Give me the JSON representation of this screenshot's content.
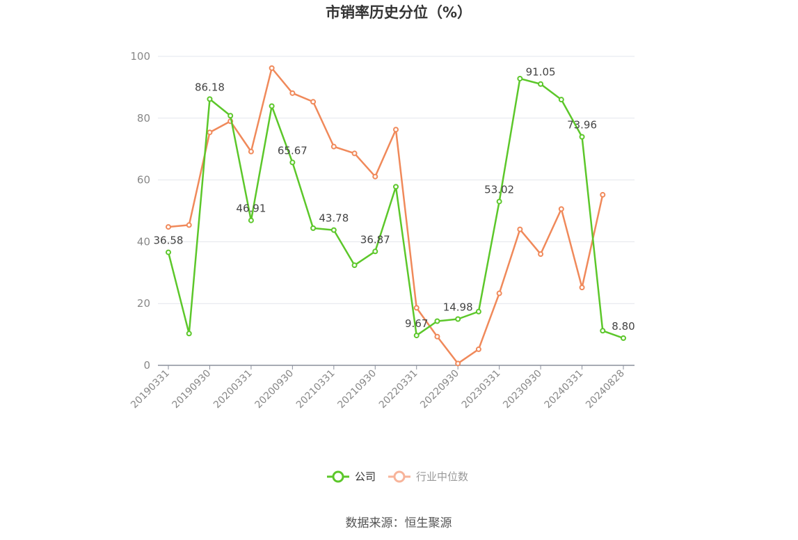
{
  "chart_data": {
    "type": "line",
    "title": "市销率历史分位（%）",
    "x": [
      "20190331",
      "20190630",
      "20190930",
      "20191231",
      "20200331",
      "20200630",
      "20200930",
      "20201231",
      "20210331",
      "20210630",
      "20210930",
      "20211231",
      "20220331",
      "20220630",
      "20220930",
      "20221231",
      "20230331",
      "20230630",
      "20230930",
      "20231231",
      "20240331",
      "20240630",
      "20240828"
    ],
    "x_tick_labels": [
      "20190331",
      "20190930",
      "20200331",
      "20200930",
      "20210331",
      "20210930",
      "20220331",
      "20220930",
      "20230331",
      "20230930",
      "20240331",
      "20240828"
    ],
    "y_ticks": [
      "0",
      "20",
      "40",
      "60",
      "80",
      "100"
    ],
    "ylim": [
      0,
      100
    ],
    "grid": true,
    "legend_position": "bottom",
    "series": [
      {
        "name": "公司",
        "color": "#5cc72a",
        "values": [
          36.58,
          10.3,
          86.18,
          80.8,
          46.91,
          83.9,
          65.67,
          44.4,
          43.78,
          32.4,
          36.87,
          57.8,
          9.67,
          14.3,
          14.98,
          17.4,
          53.02,
          92.8,
          91.05,
          86.0,
          73.96,
          11.2,
          8.8
        ],
        "data_labels": {
          "0": "36.58",
          "2": "86.18",
          "4": "46.91",
          "6": "65.67",
          "8": "43.78",
          "10": "36.87",
          "12": "9.67",
          "14": "14.98",
          "16": "53.02",
          "18": "91.05",
          "20": "73.96",
          "22": "8.80"
        }
      },
      {
        "name": "行业中位数",
        "color": "#f0895a",
        "values": [
          44.8,
          45.4,
          75.4,
          79.0,
          69.2,
          96.2,
          88.1,
          85.3,
          70.8,
          68.6,
          61.1,
          76.3,
          18.6,
          9.3,
          0.6,
          5.2,
          23.3,
          44.0,
          36.0,
          50.6,
          25.2,
          55.2,
          null
        ]
      }
    ]
  },
  "legend": {
    "company": "公司",
    "industry": "行业中位数",
    "company_color": "#5cc72a",
    "industry_color": "#f7b49a",
    "industry_text_color": "#999999"
  },
  "source": "数据来源：恒生聚源"
}
